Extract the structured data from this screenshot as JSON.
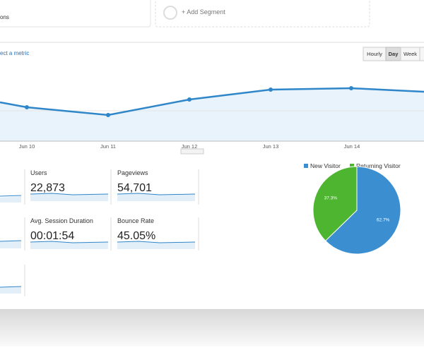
{
  "segments": {
    "first": "ons",
    "add": "+ Add Segment"
  },
  "metric_link": "ect a metric",
  "interval_buttons": [
    "Hourly",
    "Day",
    "Week"
  ],
  "x_labels": [
    "Jun 10",
    "Jun 11",
    "Jun 12",
    "Jun 13",
    "Jun 14"
  ],
  "metrics": [
    {
      "label": "Users",
      "value": "22,873"
    },
    {
      "label": "Pageviews",
      "value": "54,701"
    },
    {
      "label": "Avg. Session Duration",
      "value": "00:01:54"
    },
    {
      "label": "Bounce Rate",
      "value": "45.05%"
    }
  ],
  "chart_data": {
    "type": "pie",
    "categories": [
      "New Visitor",
      "Returning Visitor"
    ],
    "values": [
      62.7,
      37.3
    ],
    "value_labels": [
      "62.7%",
      "37.3%"
    ],
    "colors": [
      "#3b8fd1",
      "#4db52f"
    ]
  }
}
